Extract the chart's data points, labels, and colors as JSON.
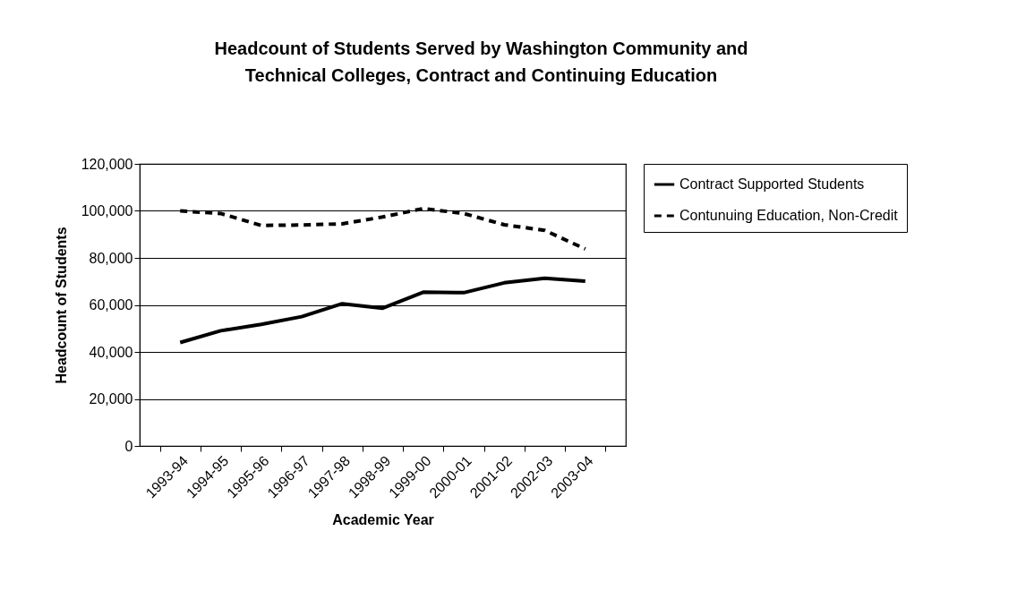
{
  "chart_data": {
    "type": "line",
    "title": "Headcount of Students Served by Washington Community and Technical Colleges, Contract and Continuing Education",
    "xlabel": "Academic Year",
    "ylabel": "Headcount of Students",
    "categories": [
      "1993-94",
      "1994-95",
      "1995-96",
      "1996-97",
      "1997-98",
      "1998-99",
      "1999-00",
      "2000-01",
      "2001-02",
      "2002-03",
      "2003-04"
    ],
    "series": [
      {
        "name": "Contract Supported Students",
        "color": "#000000",
        "line_style": "solid",
        "values": [
          44000,
          49000,
          51700,
          55000,
          60500,
          58600,
          65400,
          65200,
          69400,
          71300,
          70100
        ]
      },
      {
        "name": "Contunuing Education, Non-Credit",
        "color": "#000000",
        "line_style": "dashed",
        "values": [
          100000,
          98900,
          93800,
          94000,
          94500,
          97400,
          101000,
          98900,
          94100,
          91700,
          83800
        ]
      }
    ],
    "ylim": [
      0,
      120000
    ],
    "yticks": [
      0,
      {
        "value": 20000,
        "label": "20,000"
      },
      {
        "value": 40000,
        "label": "40,000"
      },
      {
        "value": 60000,
        "label": "60,000"
      },
      {
        "value": 80000,
        "label": "80,000"
      },
      {
        "value": 100000,
        "label": "100,000"
      },
      {
        "value": 120000,
        "label": "120,000"
      }
    ],
    "grid": "y",
    "legend": "right",
    "marker": "none"
  }
}
